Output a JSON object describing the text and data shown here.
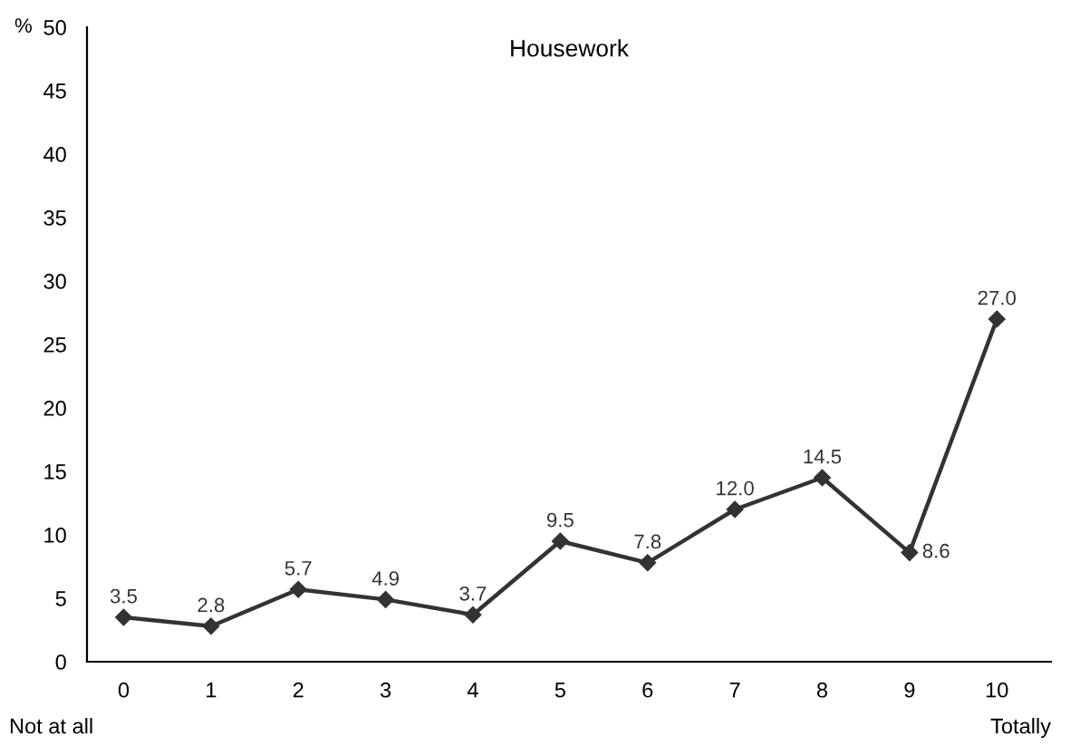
{
  "chart_data": {
    "type": "line",
    "title": "Housework",
    "ylabel": "%",
    "categories": [
      "0",
      "1",
      "2",
      "3",
      "4",
      "5",
      "6",
      "7",
      "8",
      "9",
      "10"
    ],
    "series": [
      {
        "color": "#333333",
        "values": [
          3.5,
          2.8,
          5.7,
          4.9,
          3.7,
          9.5,
          7.8,
          12.0,
          14.5,
          8.6,
          27.0
        ]
      }
    ],
    "value_labels": [
      "3.5",
      "2.8",
      "5.7",
      "4.9",
      "3.7",
      "9.5",
      "7.8",
      "12.0",
      "14.5",
      "8.6",
      "27.0"
    ],
    "annotations": [
      "Not at all",
      "Totally"
    ],
    "ylim": [
      0,
      50
    ],
    "yticks": [
      0,
      5,
      10,
      15,
      20,
      25,
      30,
      35,
      40,
      45,
      50
    ],
    "marker": "diamond",
    "line_style": "solid",
    "grid": false,
    "legend": false
  }
}
